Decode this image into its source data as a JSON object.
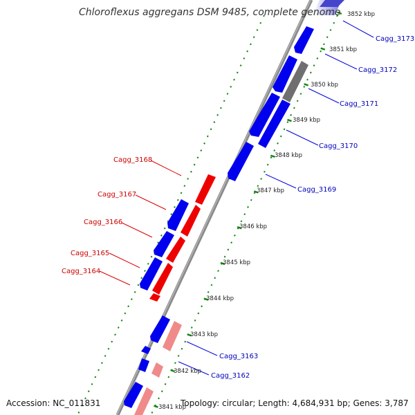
{
  "title": "Chloroflexus aggregans DSM 9485, complete genome",
  "accession": "Accession: NC_011831",
  "topology": "Topology: circular; Length: 4,684,931 bp; Genes: 3,787",
  "kbp_labels": [
    "3852 kbp",
    "3851 kbp",
    "3850 kbp",
    "3849 kbp",
    "3848 kbp",
    "3847 kbp",
    "3846 kbp",
    "3845 kbp",
    "3844 kbp",
    "3843 kbp",
    "3842 kbp",
    "3841 kbp"
  ],
  "genes_right": [
    "Cagg_3173",
    "Cagg_3172",
    "Cagg_3171",
    "Cagg_3170",
    "Cagg_3169",
    "Cagg_3163",
    "Cagg_3162"
  ],
  "genes_left": [
    "Cagg_3168",
    "Cagg_3167",
    "Cagg_3166",
    "Cagg_3165",
    "Cagg_3164"
  ],
  "colors": {
    "forward": "#0000ee",
    "reverse": "#ee0000",
    "reverse_faded": "#f08a8a",
    "forward_faded": "#8888ee",
    "pseudo": "#666666",
    "tick": "#118811",
    "backbone": "#888888",
    "label_left": "#cc0000",
    "label_right": "#0000bb"
  }
}
